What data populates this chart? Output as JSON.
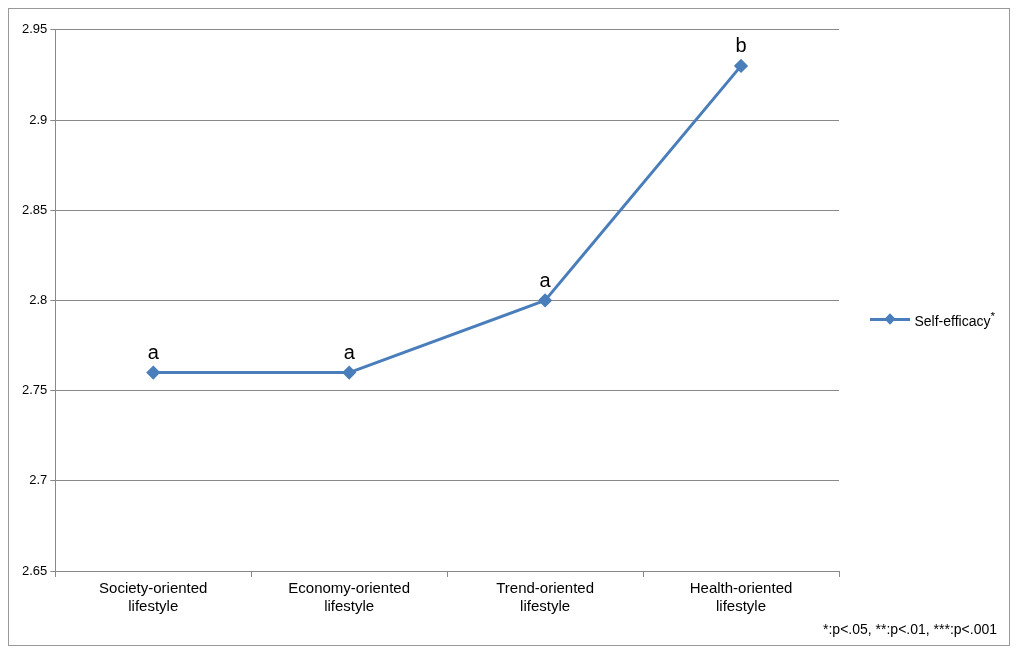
{
  "chart_data": {
    "type": "line",
    "categories": [
      "Society-oriented lifestyle",
      "Economy-oriented lifestyle",
      "Trend-oriented lifestyle",
      "Health-oriented lifestyle"
    ],
    "series": [
      {
        "name": "Self-efficacy$^{*}$",
        "color": "#4a7ebb",
        "values": [
          2.76,
          2.76,
          2.8,
          2.93
        ]
      }
    ],
    "ylim": [
      2.65,
      2.95
    ],
    "yticks": [
      2.65,
      2.7,
      2.75,
      2.8,
      2.85,
      2.9,
      2.95
    ],
    "grid": "y",
    "legend": "right",
    "marker": "diamond",
    "line_style": "solid",
    "annotations": [
      {
        "text": "a",
        "x": "Society-oriented lifestyle",
        "y": 2.76
      },
      {
        "text": "a",
        "x": "Economy-oriented lifestyle",
        "y": 2.76
      },
      {
        "text": "a",
        "x": "Trend-oriented lifestyle",
        "y": 2.8
      },
      {
        "text": "b",
        "x": "Health-oriented lifestyle",
        "y": 2.93
      },
      "*:p<.05, **:p<.01, ***:p<.001"
    ]
  }
}
